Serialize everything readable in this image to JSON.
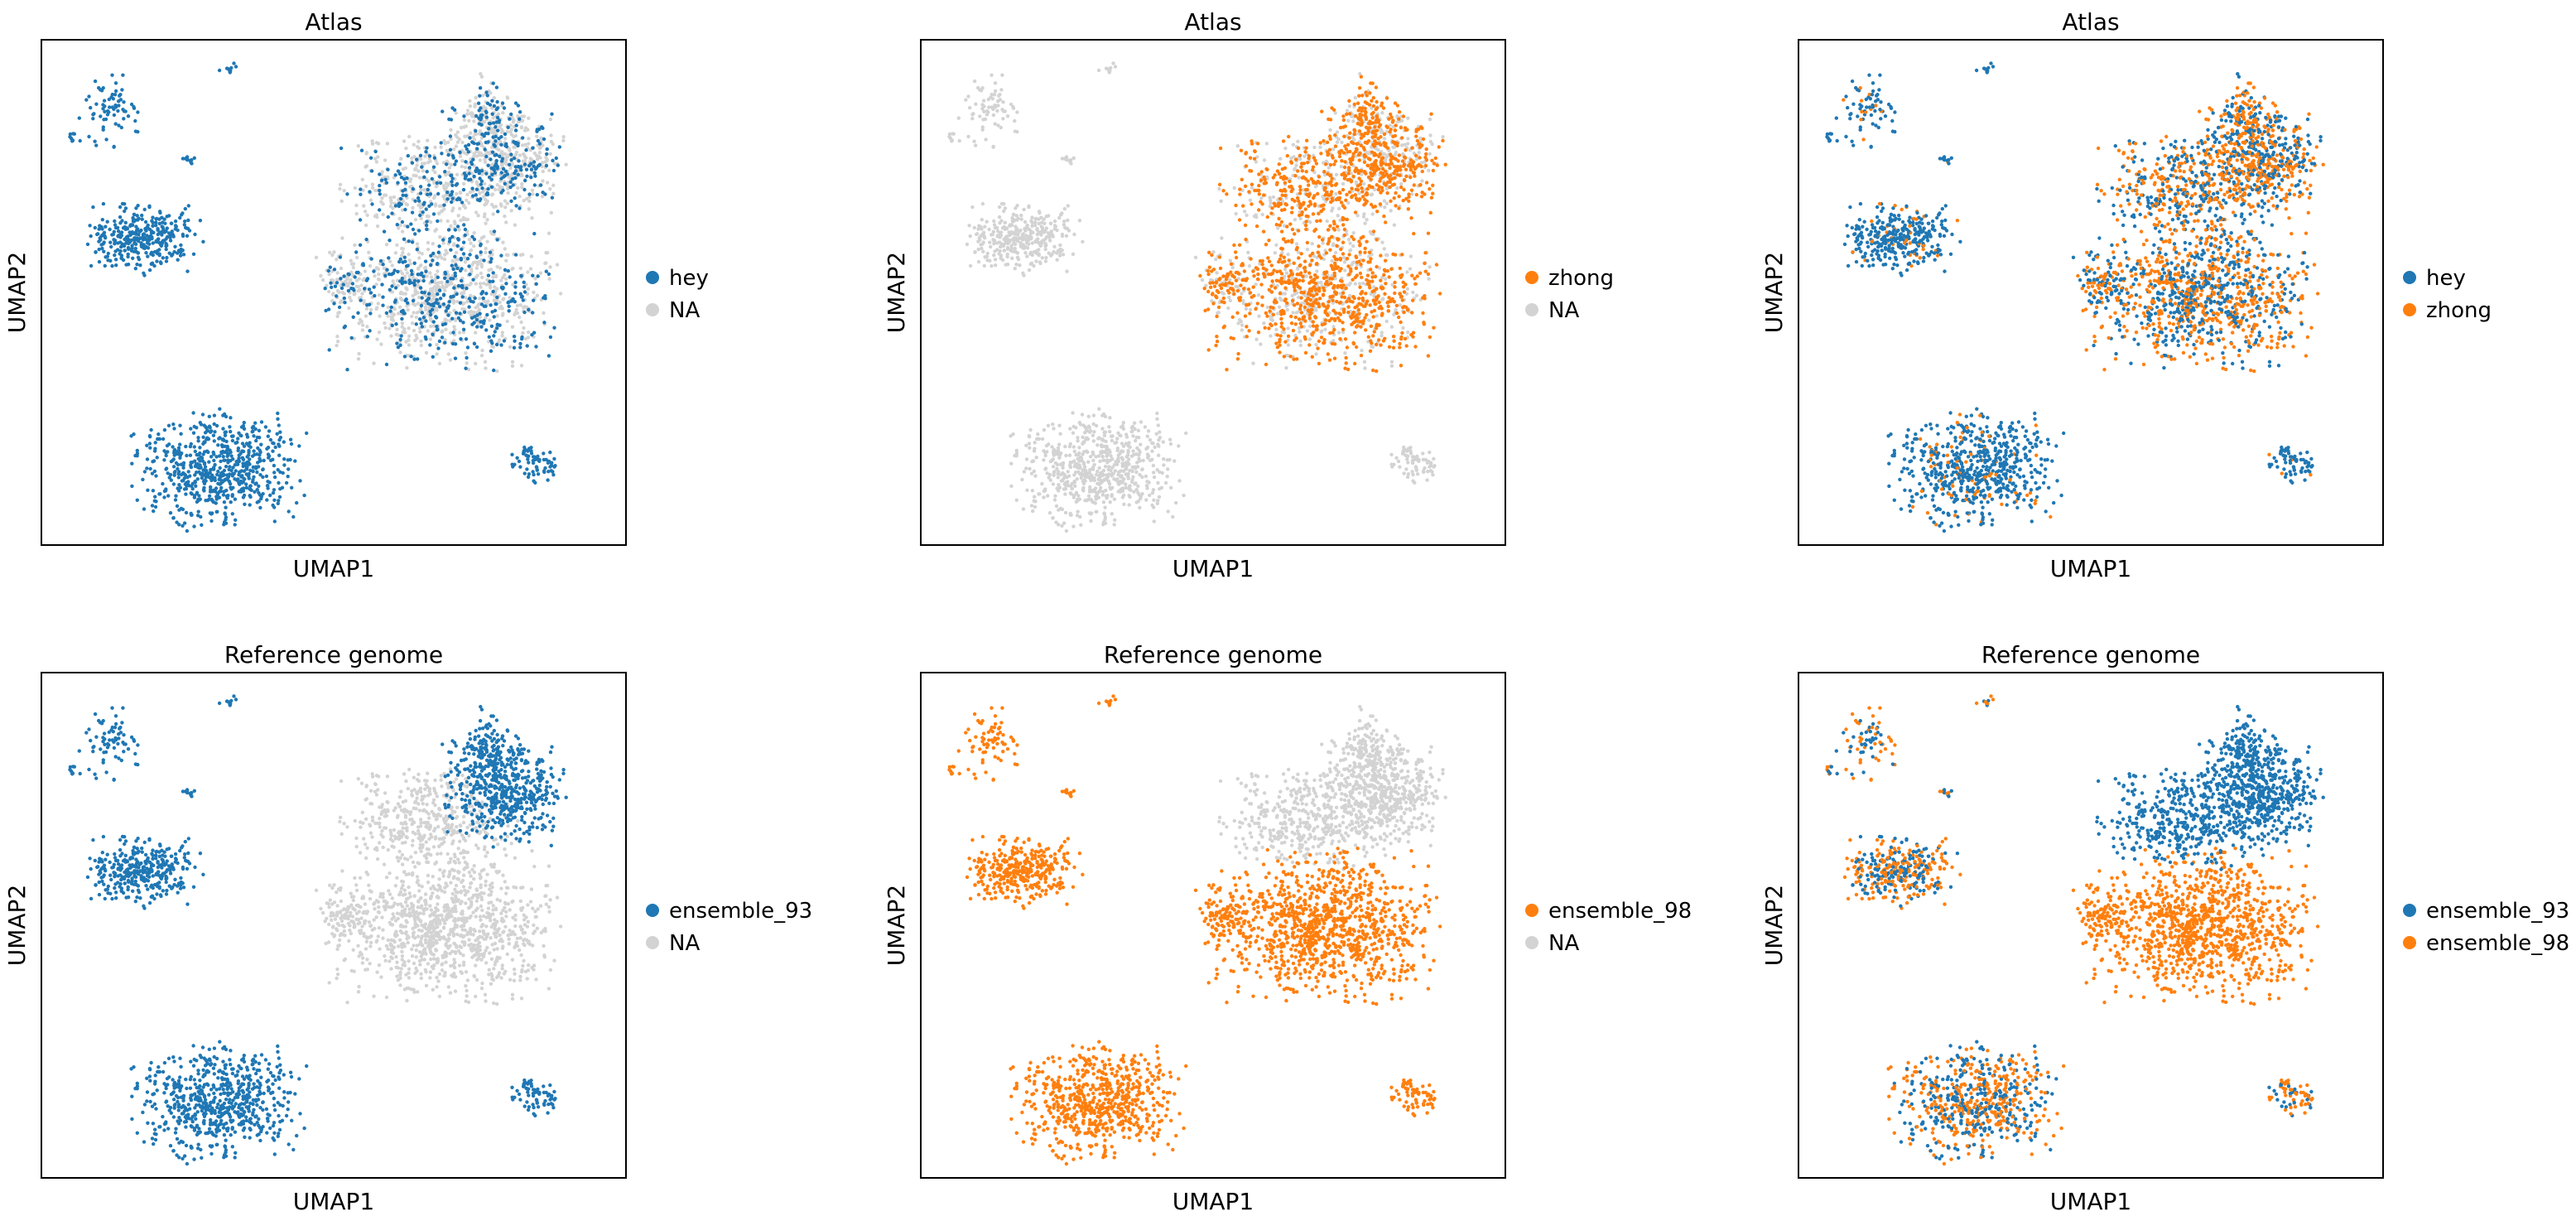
{
  "colors": {
    "hey": "#1f77b4",
    "zhong": "#ff7f0e",
    "ensemble_93": "#1f77b4",
    "ensemble_98": "#ff7f0e",
    "NA": "#d3d3d3"
  },
  "chart_data": [
    {
      "type": "scatter",
      "title": "Atlas",
      "xlabel": "UMAP1",
      "ylabel": "UMAP2",
      "grid": false,
      "ticks": false,
      "legend_placement": "right",
      "legend": [
        {
          "label": "hey",
          "color": "#1f77b4"
        },
        {
          "label": "NA",
          "color": "#d3d3d3"
        }
      ],
      "highlight": {
        "label": "hey",
        "color": "#1f77b4",
        "clusters": [
          "c1",
          "c2",
          "c3",
          "c4",
          "c5",
          "c6",
          "c7",
          "c8",
          "c9",
          "c10",
          "c11",
          "c12"
        ],
        "partial_share": 0.35
      }
    },
    {
      "type": "scatter",
      "title": "Atlas",
      "xlabel": "UMAP1",
      "ylabel": "UMAP2",
      "grid": false,
      "ticks": false,
      "legend_placement": "right",
      "legend": [
        {
          "label": "zhong",
          "color": "#ff7f0e"
        },
        {
          "label": "NA",
          "color": "#d3d3d3"
        }
      ],
      "highlight": {
        "label": "zhong",
        "color": "#ff7f0e",
        "clusters": [
          "c9",
          "c10",
          "c11",
          "c12"
        ],
        "partial_share": 0.65
      }
    },
    {
      "type": "scatter",
      "title": "Atlas",
      "xlabel": "UMAP1",
      "ylabel": "UMAP2",
      "grid": false,
      "ticks": false,
      "legend_placement": "right",
      "legend": [
        {
          "label": "hey",
          "color": "#1f77b4"
        },
        {
          "label": "zhong",
          "color": "#ff7f0e"
        }
      ],
      "overlay": "hey-zhong"
    },
    {
      "type": "scatter",
      "title": "Reference genome",
      "xlabel": "UMAP1",
      "ylabel": "UMAP2",
      "grid": false,
      "ticks": false,
      "legend_placement": "right",
      "legend": [
        {
          "label": "ensemble_93",
          "color": "#1f77b4"
        },
        {
          "label": "NA",
          "color": "#d3d3d3"
        }
      ],
      "highlight": {
        "label": "ensemble_93",
        "color": "#1f77b4",
        "clusters": [
          "c1",
          "c2",
          "c3",
          "c4",
          "c5",
          "c6",
          "c7",
          "c8",
          "c9",
          "c10"
        ]
      }
    },
    {
      "type": "scatter",
      "title": "Reference genome",
      "xlabel": "UMAP1",
      "ylabel": "UMAP2",
      "grid": false,
      "ticks": false,
      "legend_placement": "right",
      "legend": [
        {
          "label": "ensemble_98",
          "color": "#ff7f0e"
        },
        {
          "label": "NA",
          "color": "#d3d3d3"
        }
      ],
      "highlight": {
        "label": "ensemble_98",
        "color": "#ff7f0e",
        "clusters": [
          "c1",
          "c2",
          "c3",
          "c4",
          "c5",
          "c6",
          "c7",
          "c8",
          "c11",
          "c12"
        ]
      }
    },
    {
      "type": "scatter",
      "title": "Reference genome",
      "xlabel": "UMAP1",
      "ylabel": "UMAP2",
      "grid": false,
      "ticks": false,
      "legend_placement": "right",
      "legend": [
        {
          "label": "ensemble_93",
          "color": "#1f77b4"
        },
        {
          "label": "ensemble_98",
          "color": "#ff7f0e"
        }
      ],
      "overlay": "ensemble"
    }
  ]
}
